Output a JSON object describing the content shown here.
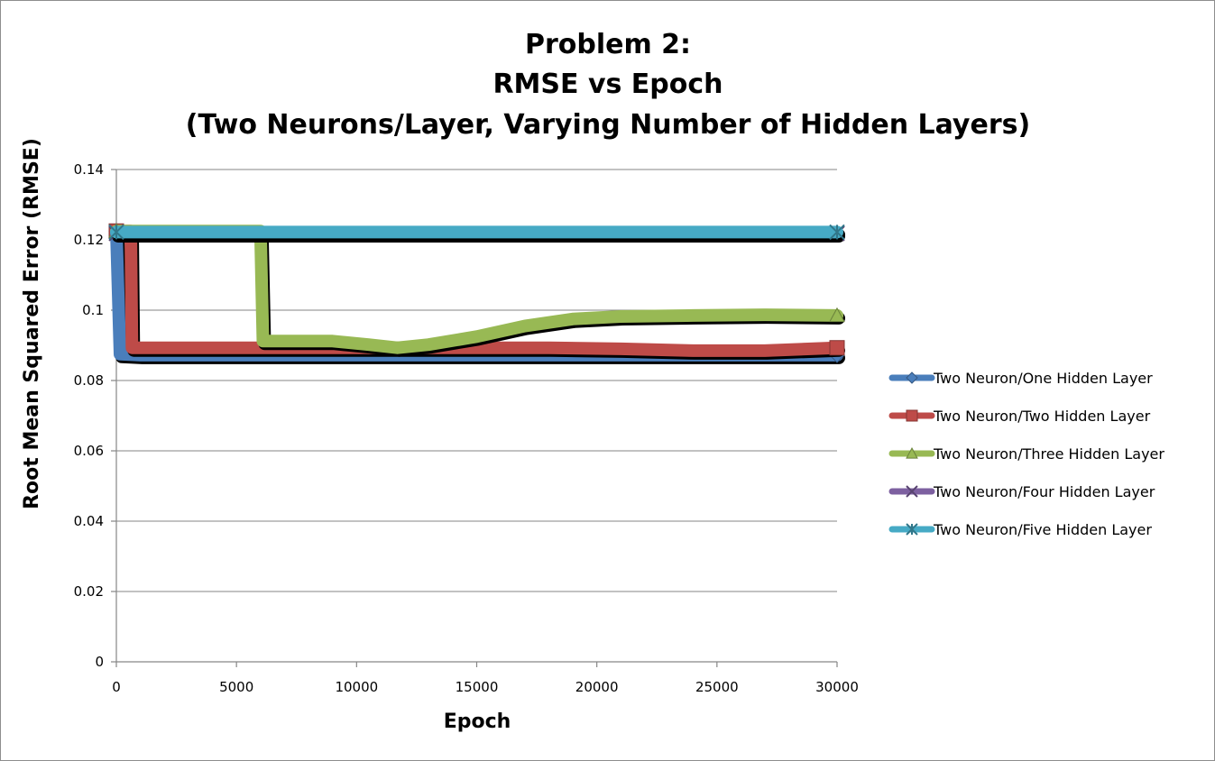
{
  "chart_data": {
    "type": "line",
    "title_lines": [
      "Problem 2:",
      "RMSE vs Epoch",
      "(Two Neurons/Layer, Varying Number of Hidden Layers)"
    ],
    "xlabel": "Epoch",
    "ylabel": "Root Mean Squared Error (RMSE)",
    "xlim": [
      0,
      30000
    ],
    "ylim": [
      0,
      0.14
    ],
    "x_ticks": [
      0,
      5000,
      10000,
      15000,
      20000,
      25000,
      30000
    ],
    "x_tick_labels": [
      "0",
      "5000",
      "10000",
      "15000",
      "20000",
      "25000",
      "30000"
    ],
    "y_ticks": [
      0,
      0.02,
      0.04,
      0.06,
      0.08,
      0.1,
      0.12,
      0.14
    ],
    "y_tick_labels": [
      "0",
      "0.02",
      "0.04",
      "0.06",
      "0.08",
      "0.1",
      "0.12",
      "0.14"
    ],
    "grid": "horizontal",
    "legend_position": "right",
    "series": [
      {
        "name": "Two Neuron/One Hidden Layer",
        "color": "#4a7ebb",
        "marker": "diamond",
        "points": [
          [
            0,
            0.1225
          ],
          [
            150,
            0.0875
          ],
          [
            1000,
            0.0872
          ],
          [
            5000,
            0.0872
          ],
          [
            10000,
            0.0872
          ],
          [
            15000,
            0.0872
          ],
          [
            20000,
            0.0872
          ],
          [
            25000,
            0.0872
          ],
          [
            30000,
            0.0872
          ]
        ]
      },
      {
        "name": "Two Neuron/Two Hidden Layer",
        "color": "#be4b48",
        "marker": "square",
        "points": [
          [
            0,
            0.1225
          ],
          [
            600,
            0.1225
          ],
          [
            650,
            0.0893
          ],
          [
            2000,
            0.0893
          ],
          [
            5000,
            0.0893
          ],
          [
            10000,
            0.0893
          ],
          [
            15000,
            0.0893
          ],
          [
            18000,
            0.0893
          ],
          [
            21000,
            0.089
          ],
          [
            24000,
            0.0885
          ],
          [
            27000,
            0.0885
          ],
          [
            30000,
            0.0893
          ]
        ]
      },
      {
        "name": "Two Neuron/Three Hidden Layer",
        "color": "#98b954",
        "marker": "triangle",
        "points": [
          [
            0,
            0.1225
          ],
          [
            6000,
            0.1225
          ],
          [
            6100,
            0.0912
          ],
          [
            7000,
            0.0912
          ],
          [
            9000,
            0.0912
          ],
          [
            10500,
            0.0902
          ],
          [
            11700,
            0.0893
          ],
          [
            13000,
            0.0902
          ],
          [
            15000,
            0.0925
          ],
          [
            17000,
            0.0955
          ],
          [
            19000,
            0.0975
          ],
          [
            21000,
            0.0982
          ],
          [
            24000,
            0.0985
          ],
          [
            27000,
            0.0987
          ],
          [
            30000,
            0.0985
          ]
        ]
      },
      {
        "name": "Two Neuron/Four Hidden Layer",
        "color": "#7d60a0",
        "marker": "x",
        "points": [
          [
            0,
            0.1218
          ],
          [
            5000,
            0.1218
          ],
          [
            10000,
            0.1218
          ],
          [
            15000,
            0.1218
          ],
          [
            20000,
            0.1218
          ],
          [
            25000,
            0.1218
          ],
          [
            30000,
            0.1218
          ]
        ]
      },
      {
        "name": "Two Neuron/Five Hidden Layer",
        "color": "#46aac5",
        "marker": "star",
        "points": [
          [
            0,
            0.1222
          ],
          [
            5000,
            0.1222
          ],
          [
            10000,
            0.1222
          ],
          [
            15000,
            0.1222
          ],
          [
            20000,
            0.1222
          ],
          [
            25000,
            0.1222
          ],
          [
            30000,
            0.1222
          ]
        ]
      }
    ]
  }
}
